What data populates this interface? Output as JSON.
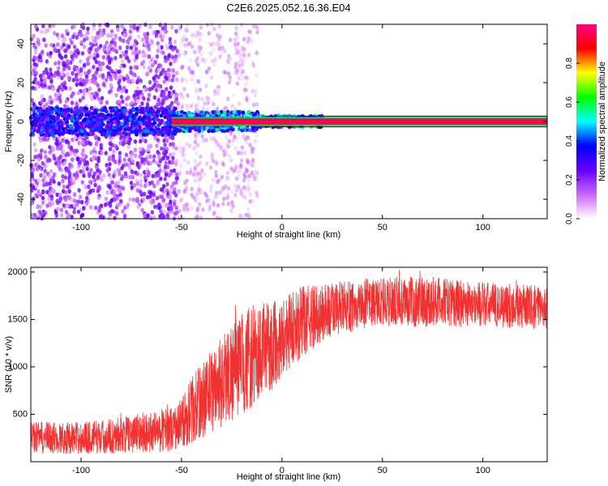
{
  "figure": {
    "title": "C2E6.2025.052.16.36.E04"
  },
  "chart_data": [
    {
      "type": "heatmap",
      "title": "C2E6.2025.052.16.36.E04",
      "xlabel": "Height of straight line (km)",
      "ylabel": "Frequency (Hz)",
      "xlim": [
        -125,
        132
      ],
      "ylim": [
        -50,
        50
      ],
      "x_ticks": [
        -100,
        -50,
        0,
        50,
        100
      ],
      "y_ticks": [
        -40,
        -20,
        0,
        20,
        40
      ],
      "grid": false,
      "description_series": {
        "carrier_frequency_hz": 0,
        "carrier_band_hz": [
          -1.5,
          1.5
        ],
        "x_scatter_end": -12,
        "x_dense_scatter_end": -52
      },
      "colorbar": {
        "label": "Normalized spectral amplitude",
        "range": [
          0,
          1
        ],
        "ticks": [
          0.0,
          0.2,
          0.4,
          0.6,
          0.8
        ],
        "colors": [
          "#ffffff",
          "#cc66ff",
          "#6600ff",
          "#0000ff",
          "#00ffff",
          "#00ff00",
          "#ffff00",
          "#ff0000",
          "#ff0080"
        ]
      }
    },
    {
      "type": "line",
      "xlabel": "Height of straight line (km)",
      "ylabel": "SNR (10 * v/v)",
      "xlim": [
        -125,
        132
      ],
      "ylim": [
        0,
        2050
      ],
      "x_ticks": [
        -100,
        -50,
        0,
        50,
        100
      ],
      "y_ticks": [
        500,
        1000,
        1500,
        2000
      ],
      "grid": false,
      "color": "#f03232",
      "envelope": {
        "x": [
          -125,
          -100,
          -80,
          -60,
          -52,
          -45,
          -35,
          -25,
          -15,
          -5,
          0,
          10,
          20,
          30,
          40,
          50,
          60,
          70,
          80,
          90,
          100,
          110,
          120,
          132
        ],
        "lower": [
          80,
          80,
          90,
          100,
          120,
          180,
          300,
          420,
          550,
          750,
          900,
          1100,
          1250,
          1350,
          1400,
          1420,
          1420,
          1420,
          1430,
          1420,
          1420,
          1410,
          1400,
          1400
        ],
        "upper": [
          420,
          420,
          470,
          560,
          600,
          900,
          1200,
          1500,
          1650,
          1700,
          1750,
          1850,
          1880,
          1900,
          1920,
          1950,
          1950,
          1960,
          1940,
          1920,
          1900,
          1880,
          1870,
          1850
        ]
      }
    }
  ]
}
